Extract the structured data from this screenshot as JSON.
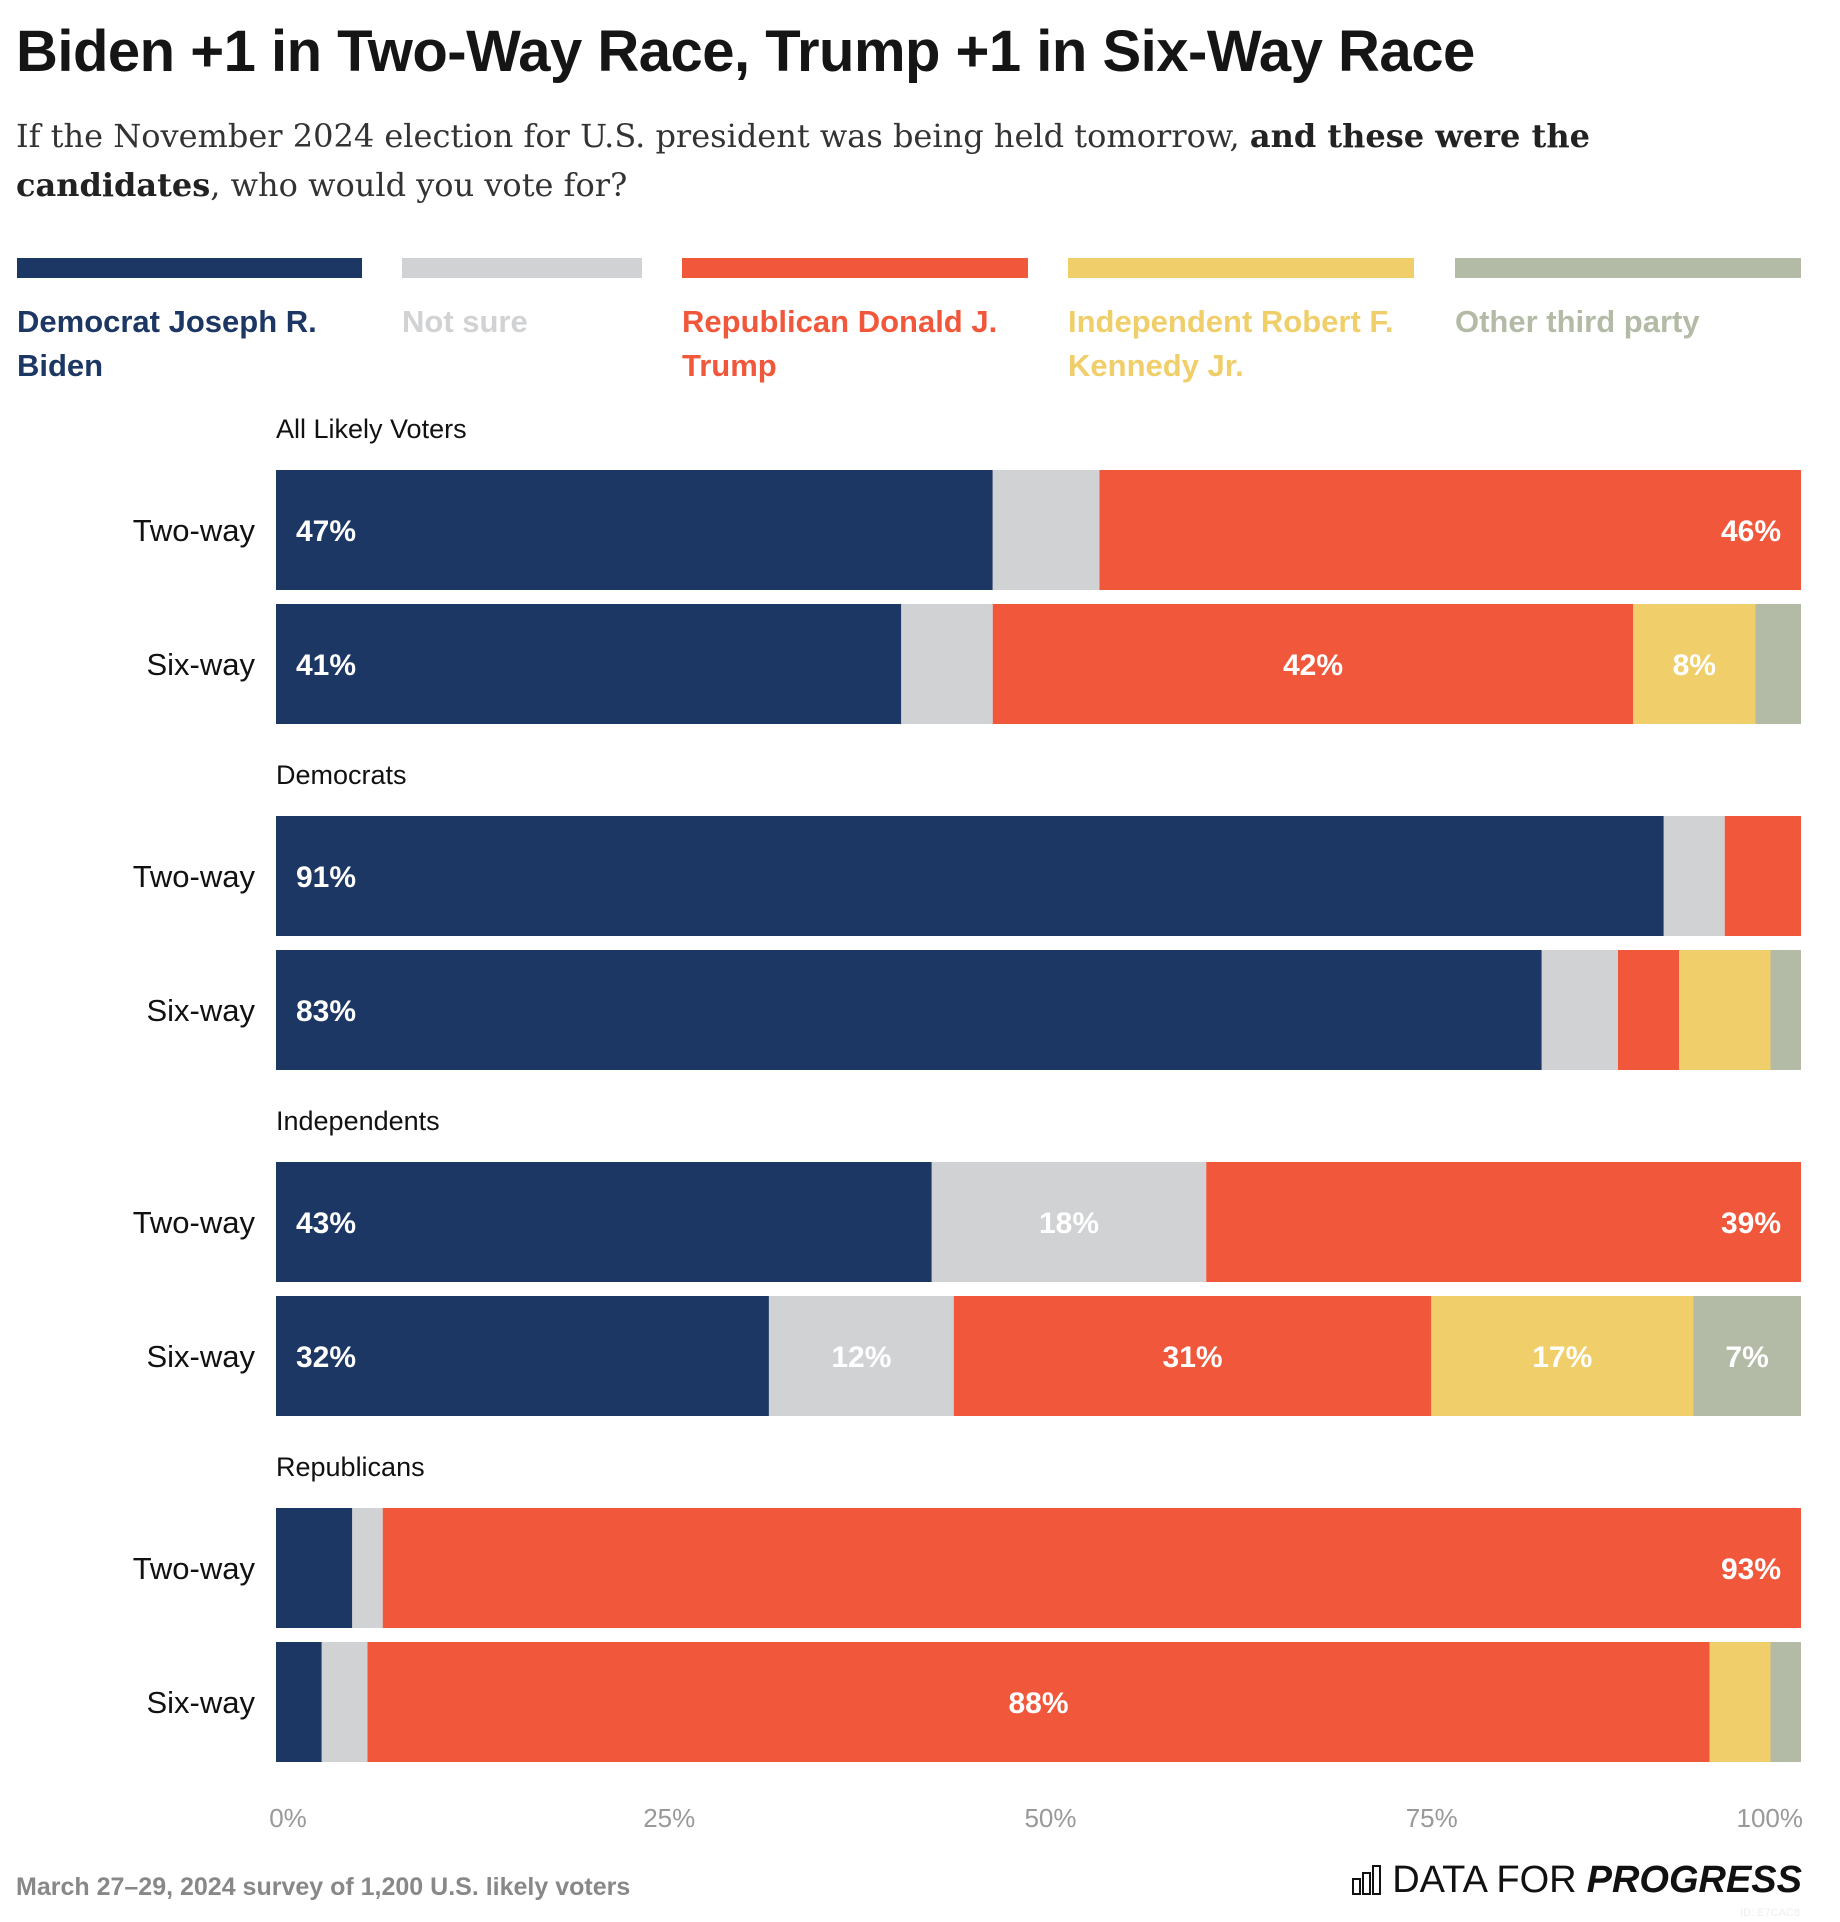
{
  "title": "Biden +1 in Two-Way Race, Trump +1 in Six-Way Race",
  "subtitle": {
    "part1": "If the November 2024 election for U.S. president was being held tomorrow, ",
    "bold": "and these were the candidates",
    "part2": ", who would you vote for?"
  },
  "footer": "March 27–29, 2024 survey of 1,200 U.S. likely voters",
  "logo": {
    "text": "DATA FOR",
    "bold": "PROGRESS",
    "id": "ID: E7CAC8"
  },
  "chart_data": {
    "type": "bar",
    "orientation": "horizontal",
    "stacked": true,
    "xlim": [
      0,
      100
    ],
    "xticks": [
      "0%",
      "25%",
      "50%",
      "75%",
      "100%"
    ],
    "legend_position": "top",
    "series": [
      {
        "name": "Democrat Joseph R. Biden",
        "color": "#1C3764"
      },
      {
        "name": "Not sure",
        "color": "#D1D2D4"
      },
      {
        "name": "Republican Donald J. Trump",
        "color": "#F1583B"
      },
      {
        "name": "Independent Robert F. Kennedy Jr.",
        "color": "#F0CE69"
      },
      {
        "name": "Other third party",
        "color": "#B3BBA6"
      }
    ],
    "groups": [
      {
        "name": "All Likely Voters",
        "rows": [
          {
            "label": "Two-way",
            "values": [
              47,
              7,
              46,
              0,
              0
            ],
            "labels": [
              "47%",
              "",
              "46%",
              "",
              ""
            ]
          },
          {
            "label": "Six-way",
            "values": [
              41,
              6,
              42,
              8,
              3
            ],
            "labels": [
              "41%",
              "",
              "42%",
              "8%",
              ""
            ]
          }
        ]
      },
      {
        "name": "Democrats",
        "rows": [
          {
            "label": "Two-way",
            "values": [
              91,
              4,
              5,
              0,
              0
            ],
            "labels": [
              "91%",
              "",
              "",
              "",
              ""
            ]
          },
          {
            "label": "Six-way",
            "values": [
              83,
              5,
              4,
              6,
              2
            ],
            "labels": [
              "83%",
              "",
              "",
              "",
              ""
            ]
          }
        ]
      },
      {
        "name": "Independents",
        "rows": [
          {
            "label": "Two-way",
            "values": [
              43,
              18,
              39,
              0,
              0
            ],
            "labels": [
              "43%",
              "18%",
              "39%",
              "",
              ""
            ]
          },
          {
            "label": "Six-way",
            "values": [
              32,
              12,
              31,
              17,
              7
            ],
            "labels": [
              "32%",
              "12%",
              "31%",
              "17%",
              "7%"
            ]
          }
        ]
      },
      {
        "name": "Republicans",
        "rows": [
          {
            "label": "Two-way",
            "values": [
              5,
              2,
              93,
              0,
              0
            ],
            "labels": [
              "",
              "",
              "93%",
              "",
              ""
            ]
          },
          {
            "label": "Six-way",
            "values": [
              3,
              3,
              88,
              4,
              2
            ],
            "labels": [
              "",
              "",
              "88%",
              "",
              ""
            ]
          }
        ]
      }
    ]
  }
}
